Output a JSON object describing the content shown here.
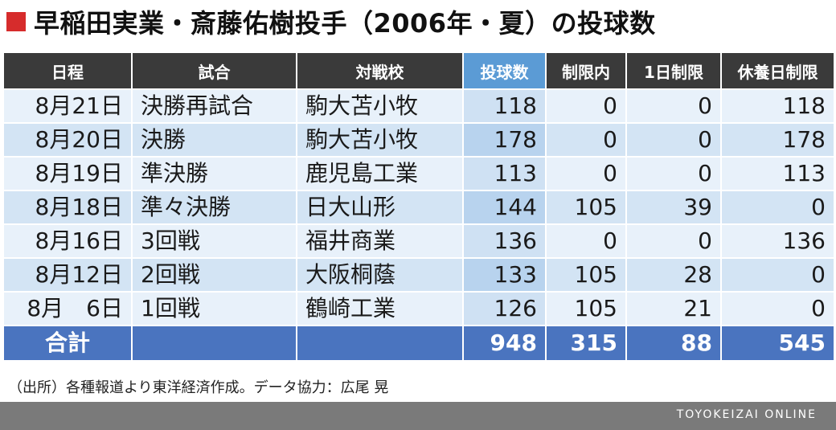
{
  "title": "早稲田実業・斎藤佑樹投手（2006年・夏）の投球数",
  "colors": {
    "title_mark": "#d62c2c",
    "header": "#3a3a3a",
    "header_highlight": "#5b9bd5",
    "total_row": "#4a74bf",
    "footer": "#7a7a7a"
  },
  "chart_data": {
    "type": "table",
    "title": "早稲田実業・斎藤佑樹投手（2006年・夏）の投球数",
    "columns": [
      "日程",
      "試合",
      "対戦校",
      "投球数",
      "制限内",
      "1日制限",
      "休養日制限"
    ],
    "highlight_column": "投球数",
    "rows": [
      [
        "8月21日",
        "決勝再試合",
        "駒大苫小牧",
        "118",
        "0",
        "0",
        "118"
      ],
      [
        "8月20日",
        "決勝",
        "駒大苫小牧",
        "178",
        "0",
        "0",
        "178"
      ],
      [
        "8月19日",
        "準決勝",
        "鹿児島工業",
        "113",
        "0",
        "0",
        "113"
      ],
      [
        "8月18日",
        "準々決勝",
        "日大山形",
        "144",
        "105",
        "39",
        "0"
      ],
      [
        "8月16日",
        "3回戦",
        "福井商業",
        "136",
        "0",
        "0",
        "136"
      ],
      [
        "8月12日",
        "2回戦",
        "大阪桐蔭",
        "133",
        "105",
        "28",
        "0"
      ],
      [
        "8月　6日",
        "1回戦",
        "鶴崎工業",
        "126",
        "105",
        "21",
        "0"
      ]
    ],
    "total": {
      "label": "合計",
      "values": [
        "948",
        "315",
        "88",
        "545"
      ]
    }
  },
  "source": "（出所）各種報道より東洋経済作成。データ協力：広尾 晃",
  "brand": "TOYOKEIZAI ONLINE"
}
